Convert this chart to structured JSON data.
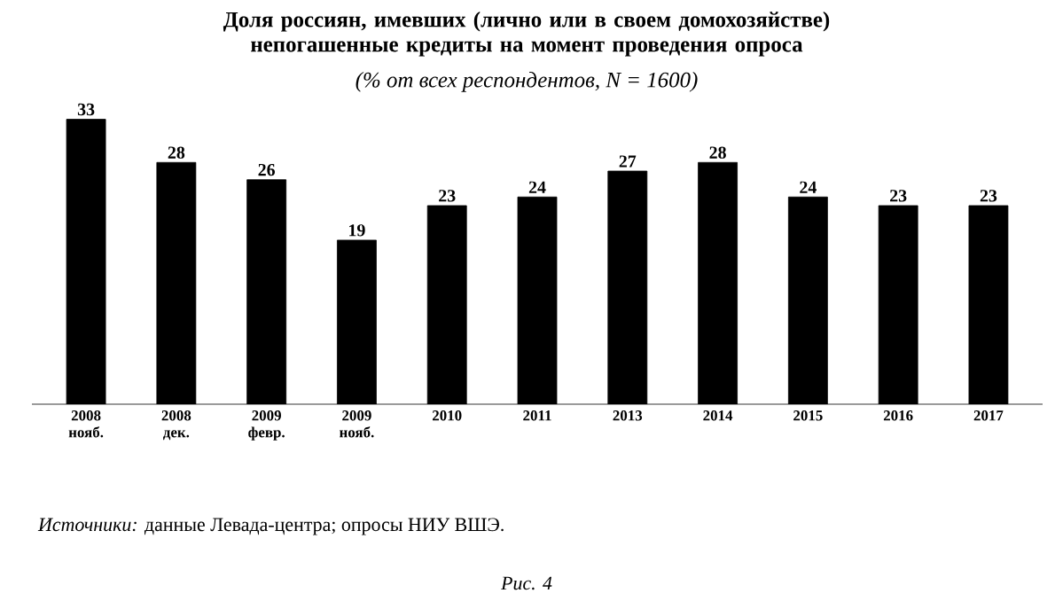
{
  "chart_data": {
    "type": "bar",
    "title": "Доля россиян, имевших (лично или в своем домохозяйстве) непогашенные кредиты на момент проведения опроса",
    "subtitle": "(% от всех респондентов, N = 1600)",
    "categories": [
      "2008 нояб.",
      "2008 дек.",
      "2009 февр.",
      "2009 нояб.",
      "2010",
      "2011",
      "2013",
      "2014",
      "2015",
      "2016",
      "2017"
    ],
    "values": [
      33,
      28,
      26,
      19,
      23,
      24,
      27,
      28,
      24,
      23,
      23
    ],
    "color": "#000000",
    "data_labels": true,
    "annotations": [
      "*Источники:* данные Левада-центра; опросы НИУ ВШЭ.",
      "Рис. 4"
    ]
  }
}
